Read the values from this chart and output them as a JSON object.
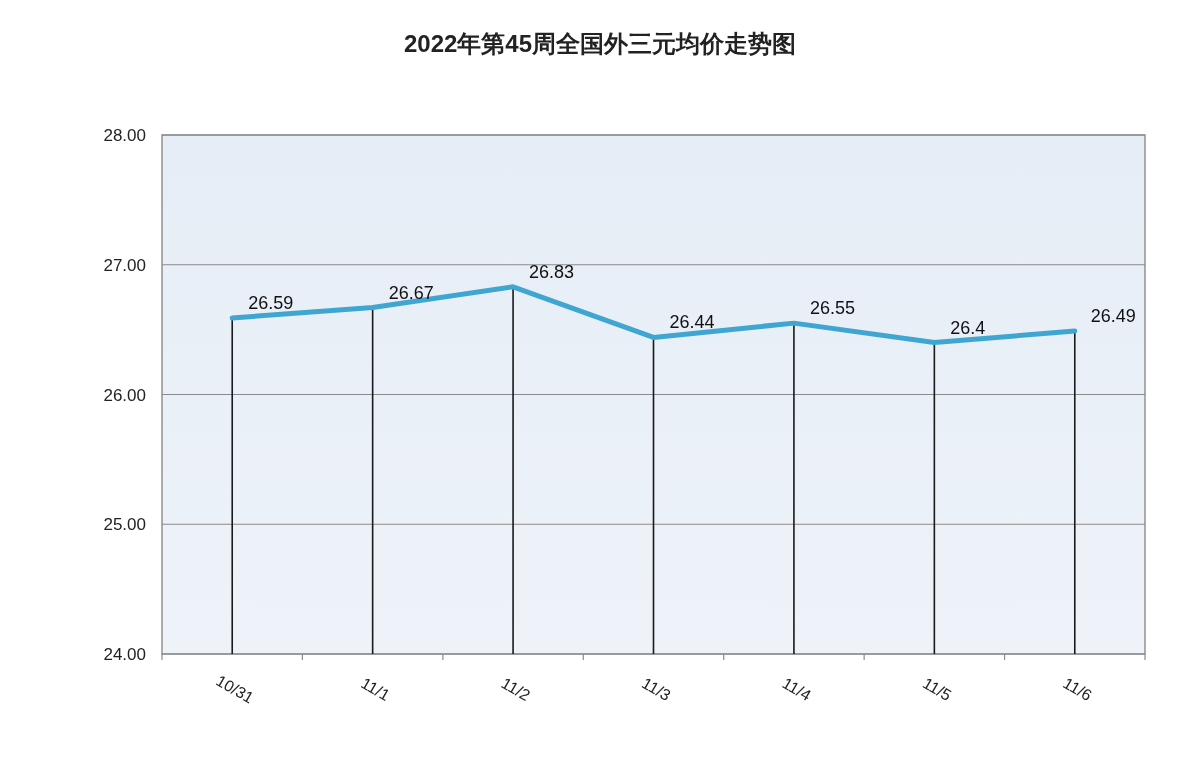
{
  "chart_data": {
    "type": "line",
    "title": "2022年第45周全国外三元均价走势图",
    "categories": [
      "10/31",
      "11/1",
      "11/2",
      "11/3",
      "11/4",
      "11/5",
      "11/6"
    ],
    "series": [
      {
        "color": "#3fa6d2",
        "values": [
          26.59,
          26.67,
          26.83,
          26.44,
          26.55,
          26.4,
          26.49
        ]
      }
    ],
    "ylim": [
      24,
      28
    ],
    "yticks": [
      {
        "value": 24,
        "label": "24.00"
      },
      {
        "value": 25,
        "label": "25.00"
      },
      {
        "value": 26,
        "label": "26.00"
      },
      {
        "value": 27,
        "label": "27.00"
      },
      {
        "value": 28,
        "label": "28.00"
      }
    ],
    "grid": "y",
    "data_labels": true
  }
}
